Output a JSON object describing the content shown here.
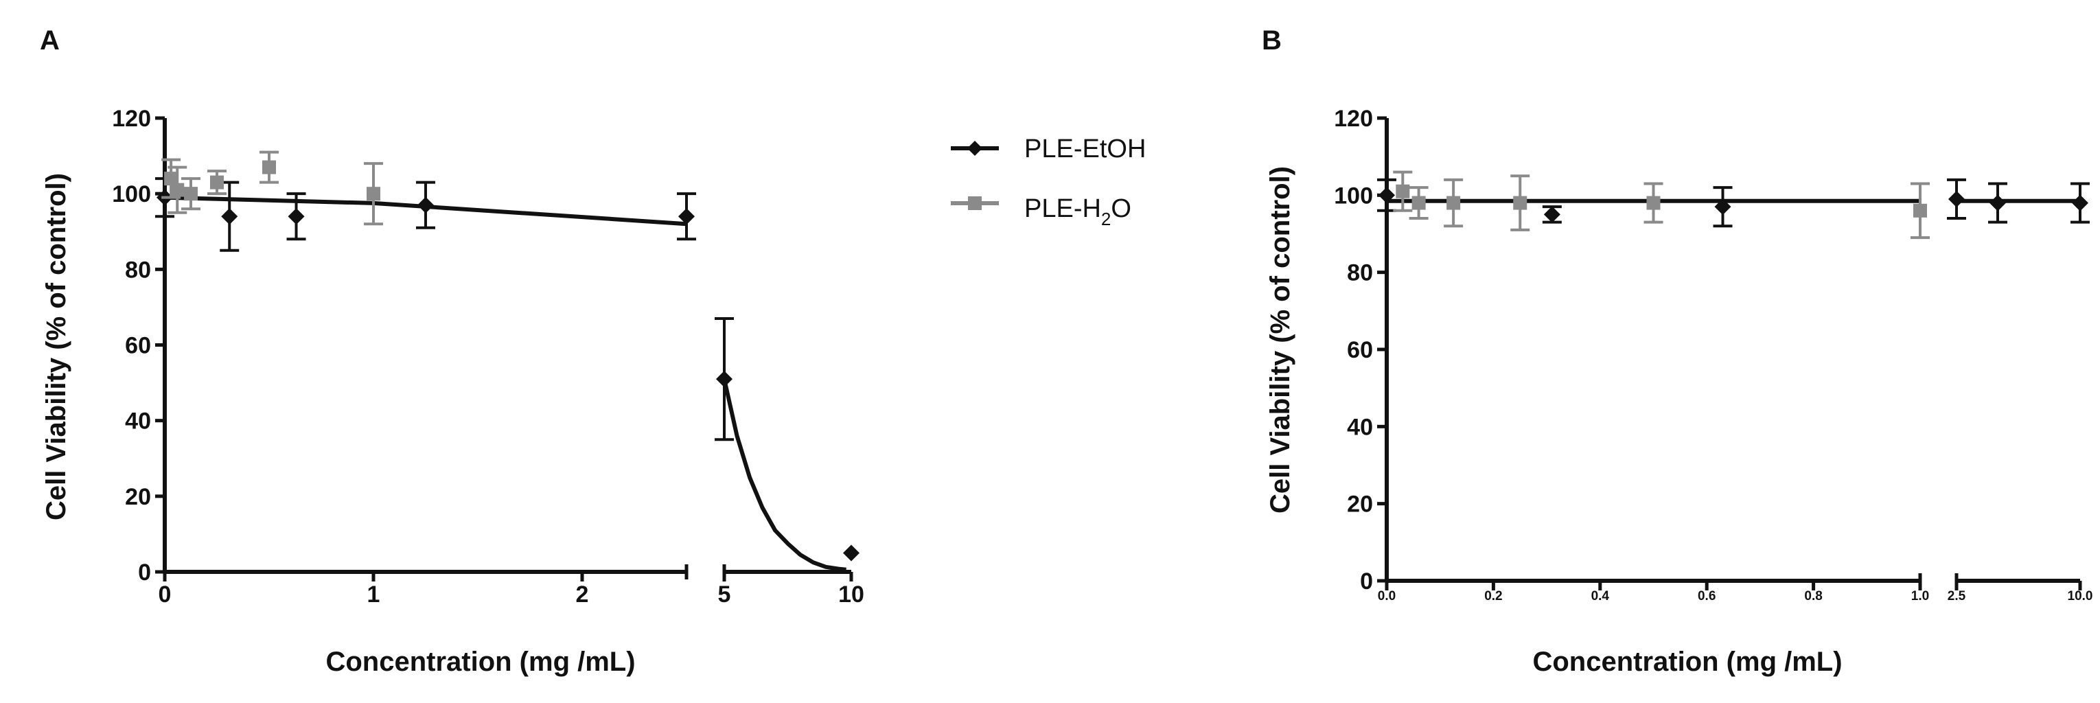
{
  "legend": [
    {
      "name": "PLE-EtOH",
      "color": "#111111",
      "marker": "diamond"
    },
    {
      "name": "PLE-H",
      "sub": "2",
      "tail": "O",
      "color": "#8a8a8a",
      "marker": "square"
    }
  ],
  "chart_data": [
    {
      "panel": "A",
      "type": "scatter",
      "xlabel": "Concentration (mg /mL)",
      "ylabel": "Cell Viability (% of control)",
      "ylim": [
        0,
        120
      ],
      "yticks": [
        "0",
        "20",
        "40",
        "60",
        "80",
        "100",
        "120"
      ],
      "segments": [
        {
          "xlim": [
            0,
            2.5
          ],
          "ticks": [
            {
              "v": 0,
              "label": "0"
            },
            {
              "v": 1,
              "label": "1"
            },
            {
              "v": 2,
              "label": "2"
            }
          ]
        },
        {
          "xlim": [
            5,
            10
          ],
          "ticks": [
            {
              "v": 5,
              "label": "5"
            },
            {
              "v": 10,
              "label": "10"
            }
          ]
        }
      ],
      "series": [
        {
          "name": "PLE-EtOH",
          "points": [
            {
              "x": 0,
              "y": 99,
              "err": 5
            },
            {
              "x": 0.31,
              "y": 94,
              "err": 9
            },
            {
              "x": 0.63,
              "y": 94,
              "err": 6
            },
            {
              "x": 1.25,
              "y": 97,
              "err": 6
            },
            {
              "x": 2.5,
              "y": 94,
              "err": 6
            },
            {
              "x": 5,
              "y": 51,
              "err": 16
            },
            {
              "x": 10,
              "y": 5,
              "err": 0
            }
          ],
          "fit": [
            {
              "x": 0,
              "y": 99
            },
            {
              "x": 1,
              "y": 97.5
            },
            {
              "x": 2.5,
              "y": 92
            },
            {
              "x": 5,
              "y": 51
            },
            {
              "x": 5.5,
              "y": 36
            },
            {
              "x": 6,
              "y": 25
            },
            {
              "x": 6.5,
              "y": 17
            },
            {
              "x": 7,
              "y": 11
            },
            {
              "x": 7.5,
              "y": 7.5
            },
            {
              "x": 8,
              "y": 4.5
            },
            {
              "x": 8.5,
              "y": 2.5
            },
            {
              "x": 9,
              "y": 1.3
            },
            {
              "x": 9.5,
              "y": 0.8
            },
            {
              "x": 9.8,
              "y": 0.6
            }
          ]
        },
        {
          "name": "PLE-H2O",
          "points": [
            {
              "x": 0.03,
              "y": 104,
              "err": 5
            },
            {
              "x": 0.06,
              "y": 101,
              "err": 6
            },
            {
              "x": 0.125,
              "y": 100,
              "err": 4
            },
            {
              "x": 0.25,
              "y": 103,
              "err": 3
            },
            {
              "x": 0.5,
              "y": 107,
              "err": 4
            },
            {
              "x": 1,
              "y": 100,
              "err": 8
            }
          ]
        }
      ]
    },
    {
      "panel": "B",
      "type": "scatter",
      "xlabel": "Concentration (mg /mL)",
      "ylabel": "Cell Viability (% of control)",
      "ylim": [
        0,
        120
      ],
      "yticks": [
        "0",
        "20",
        "40",
        "60",
        "80",
        "100",
        "120"
      ],
      "segments": [
        {
          "xlim": [
            0,
            1
          ],
          "ticks": [
            {
              "v": 0,
              "label": "0.0"
            },
            {
              "v": 0.2,
              "label": "0.2"
            },
            {
              "v": 0.4,
              "label": "0.4"
            },
            {
              "v": 0.6,
              "label": "0.6"
            },
            {
              "v": 0.8,
              "label": "0.8"
            },
            {
              "v": 1,
              "label": "1.0"
            }
          ]
        },
        {
          "xlim": [
            2.5,
            10
          ],
          "ticks": [
            {
              "v": 2.5,
              "label": "2.5"
            },
            {
              "v": 10,
              "label": "10.0"
            }
          ]
        }
      ],
      "series": [
        {
          "name": "PLE-EtOH",
          "points": [
            {
              "x": 0,
              "y": 100,
              "err": 4
            },
            {
              "x": 0.31,
              "y": 95,
              "err": 2
            },
            {
              "x": 0.63,
              "y": 97,
              "err": 5
            },
            {
              "x": 2.5,
              "y": 99,
              "err": 5
            },
            {
              "x": 5,
              "y": 98,
              "err": 5
            },
            {
              "x": 10,
              "y": 98,
              "err": 5
            }
          ],
          "fit": [
            {
              "x": 0,
              "y": 98.5
            },
            {
              "x": 1,
              "y": 98.5
            },
            {
              "x": 2.5,
              "y": 98.5
            },
            {
              "x": 10,
              "y": 98.5
            }
          ]
        },
        {
          "name": "PLE-H2O",
          "points": [
            {
              "x": 0.03,
              "y": 101,
              "err": 5
            },
            {
              "x": 0.06,
              "y": 98,
              "err": 4
            },
            {
              "x": 0.125,
              "y": 98,
              "err": 6
            },
            {
              "x": 0.25,
              "y": 98,
              "err": 7
            },
            {
              "x": 0.5,
              "y": 98,
              "err": 5
            },
            {
              "x": 1,
              "y": 96,
              "err": 7
            }
          ]
        }
      ]
    }
  ]
}
